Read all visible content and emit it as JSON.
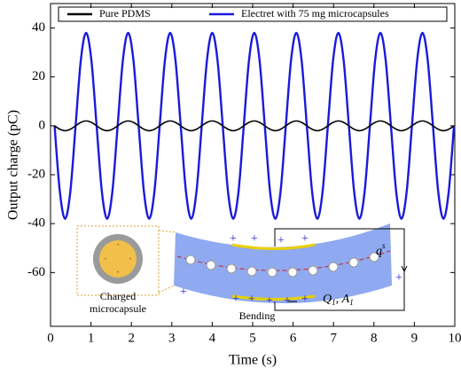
{
  "chart_data": {
    "type": "line",
    "x_label": "Time (s)",
    "y_label": "Output charge (pC)",
    "xlim": [
      0,
      10
    ],
    "xticks": [
      0,
      1,
      2,
      3,
      4,
      5,
      6,
      7,
      8,
      9,
      10
    ],
    "ylim": [
      -82,
      50
    ],
    "yticks": [
      -60,
      -40,
      -20,
      0,
      20,
      40
    ],
    "legend": "top",
    "x": [
      0.1,
      0.23,
      0.36,
      0.49,
      0.62,
      0.75,
      0.88,
      1.01,
      1.14,
      1.27,
      1.4,
      1.53,
      1.66,
      1.79,
      1.92,
      2.05,
      2.18,
      2.31,
      2.44,
      2.57,
      2.7,
      2.83,
      2.96,
      3.09,
      3.22,
      3.35,
      3.48,
      3.61,
      3.74,
      3.87,
      4,
      4.13,
      4.26,
      4.39,
      4.52,
      4.65,
      4.78,
      4.91,
      5.04,
      5.17,
      5.3,
      5.43,
      5.56,
      5.69,
      5.82,
      5.95,
      6.08,
      6.21,
      6.34,
      6.47,
      6.6,
      6.73,
      6.86,
      6.99,
      7.12,
      7.25,
      7.38,
      7.51,
      7.64,
      7.77,
      7.9,
      8.03,
      8.16,
      8.29,
      8.42,
      8.55,
      8.68,
      8.81,
      8.94,
      9.07,
      9.2,
      9.33,
      9.46,
      9.59,
      9.72,
      9.85,
      9.98
    ],
    "series": [
      {
        "name": "Electret with 75 mg microcapsules",
        "color": "#1a1adb",
        "values": [
          0,
          -26.9,
          -38,
          -26.9,
          0,
          26.9,
          38,
          26.9,
          0,
          -26.9,
          -38,
          -26.9,
          0,
          26.9,
          38,
          26.9,
          0,
          -26.9,
          -38,
          -26.9,
          0,
          26.9,
          38,
          26.9,
          0,
          -26.9,
          -38,
          -26.9,
          0,
          26.9,
          38,
          26.9,
          0,
          -26.9,
          -38,
          -26.9,
          0,
          26.9,
          38,
          26.9,
          0,
          -26.9,
          -38,
          -26.9,
          0,
          26.9,
          38,
          26.9,
          0,
          -26.9,
          -38,
          -26.9,
          0,
          26.9,
          38,
          26.9,
          0,
          -26.9,
          -38,
          -26.9,
          0,
          26.9,
          38,
          26.9,
          0,
          -26.9,
          -38,
          -26.9,
          0,
          26.9,
          38,
          26.9,
          0,
          -26.9,
          -38,
          -26.9,
          0
        ]
      },
      {
        "name": "Pure PDMS",
        "color": "#000000",
        "values": [
          0,
          -1.4,
          -2,
          -1.4,
          0,
          1.4,
          2,
          1.4,
          0,
          -1.4,
          -2,
          -1.4,
          0,
          1.4,
          2,
          1.4,
          0,
          -1.4,
          -2,
          -1.4,
          0,
          1.4,
          2,
          1.4,
          0,
          -1.4,
          -2,
          -1.4,
          0,
          1.4,
          2,
          1.4,
          0,
          -1.4,
          -2,
          -1.4,
          0,
          1.4,
          2,
          1.4,
          0,
          -1.4,
          -2,
          -1.4,
          0,
          1.4,
          2,
          1.4,
          0,
          -1.4,
          -2,
          -1.4,
          0,
          1.4,
          2,
          1.4,
          0,
          -1.4,
          -2,
          -1.4,
          0,
          1.4,
          2,
          1.4,
          0,
          -1.4,
          -2,
          -1.4,
          0,
          1.4,
          2,
          1.4,
          0,
          -1.4,
          -2,
          -1.4,
          0
        ]
      }
    ],
    "annotations": [
      "Charged",
      "microcapsule",
      "Bending"
    ],
    "charge_label": {
      "base": "q",
      "sup": "s"
    },
    "electrode_label": [
      "Q",
      "1",
      ", ",
      "A",
      "1"
    ]
  }
}
